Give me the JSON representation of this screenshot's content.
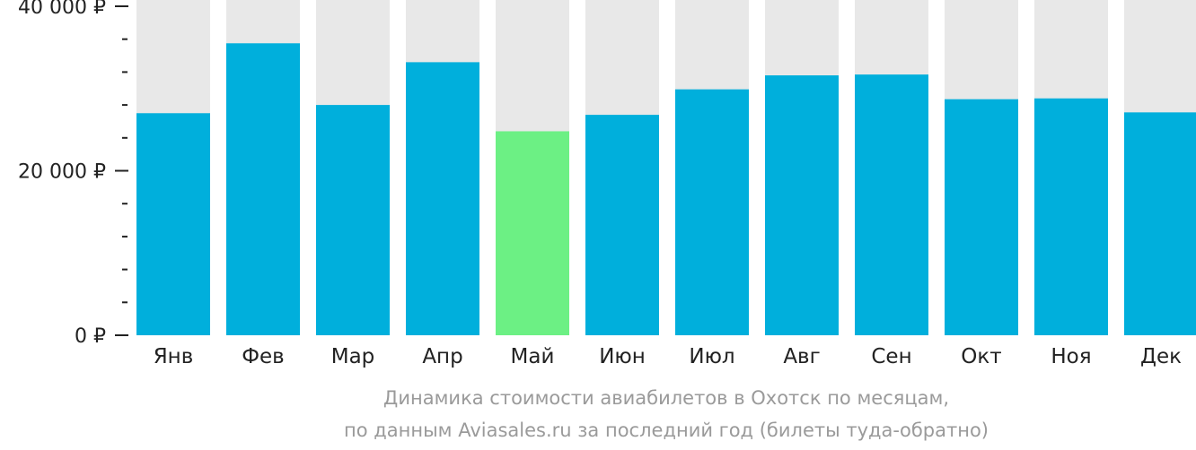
{
  "chart_data": {
    "type": "bar",
    "categories": [
      "Янв",
      "Фев",
      "Мар",
      "Апр",
      "Май",
      "Июн",
      "Июл",
      "Авг",
      "Сен",
      "Окт",
      "Ноя",
      "Дек"
    ],
    "values": [
      27000,
      35500,
      28000,
      33200,
      24800,
      26800,
      29900,
      31600,
      31700,
      28700,
      28800,
      27100
    ],
    "highlight_index": 4,
    "ylim": [
      0,
      40000
    ],
    "y_ticks": [
      {
        "value": 0,
        "label": "0 ₽"
      },
      {
        "value": 20000,
        "label": "20 000 ₽"
      },
      {
        "value": 40000,
        "label": "40 000 ₽"
      }
    ],
    "minor_tick_step": 4000,
    "caption_line1": "Динамика стоимости авиабилетов в Охотск по месяцам,",
    "caption_line2": "по данным Aviasales.ru за последний год (билеты туда-обратно)",
    "colors": {
      "bar": "#00afdc",
      "highlight": "#6cf084",
      "background_bar": "#e8e8e8",
      "axis": "#222222",
      "caption": "#9a9a9a"
    }
  }
}
